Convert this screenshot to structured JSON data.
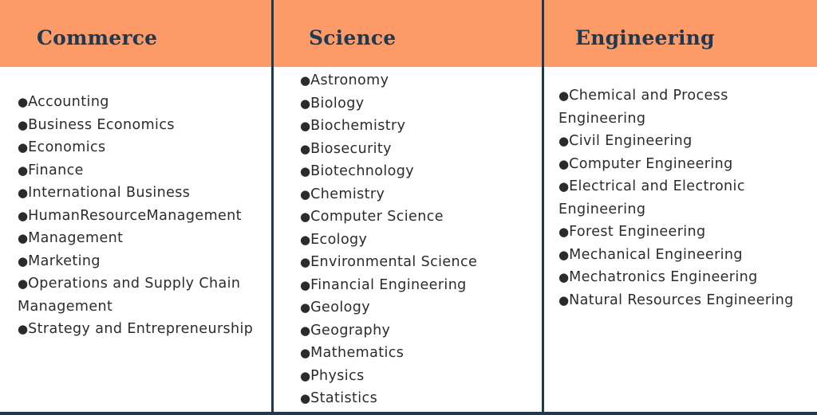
{
  "columns": [
    {
      "title": "Commerce",
      "items": [
        "Accounting",
        "Business Economics",
        "Economics",
        "Finance",
        "International Business",
        "HumanResourceManagement",
        "Management",
        "Marketing",
        "Operations and Supply Chain Management",
        "Strategy and Entrepreneurship"
      ]
    },
    {
      "title": "Science",
      "items": [
        "Astronomy",
        "Biology",
        "Biochemistry",
        "Biosecurity",
        "Biotechnology",
        "Chemistry",
        "Computer Science",
        "Ecology",
        "Environmental Science",
        "Financial Engineering",
        "Geology",
        "Geography",
        "Mathematics",
        "Physics",
        "Statistics"
      ]
    },
    {
      "title": "Engineering",
      "items": [
        "Chemical and Process Engineering",
        "Civil Engineering",
        "Computer Engineering",
        "Electrical and Electronic Engineering",
        "Forest Engineering",
        "Mechanical Engineering",
        "Mechatronics Engineering",
        "Natural Resources Engineering"
      ]
    }
  ]
}
